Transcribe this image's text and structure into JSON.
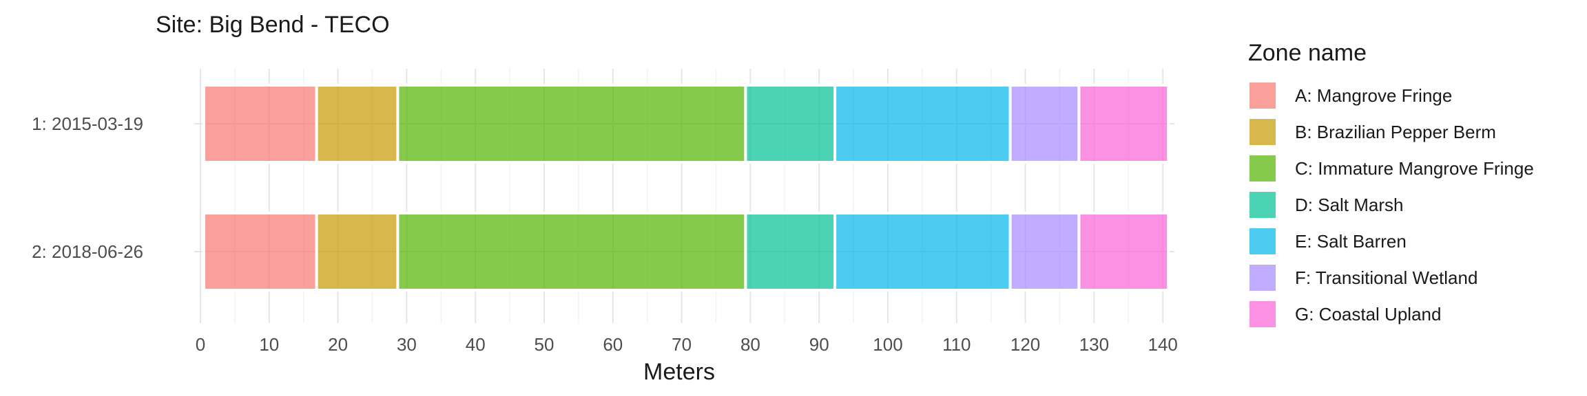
{
  "chart_data": {
    "type": "bar",
    "orientation": "horizontal-stacked",
    "title": "Site: Big Bend - TECO",
    "xlabel": "Meters",
    "ylabel": "",
    "xlim": [
      0,
      141
    ],
    "x_ticks": [
      0,
      10,
      20,
      30,
      40,
      50,
      60,
      70,
      80,
      90,
      100,
      110,
      120,
      130,
      140
    ],
    "categories": [
      "1: 2015-03-19",
      "2: 2018-06-26"
    ],
    "legend_title": "Zone name",
    "legend_position": "right",
    "series": [
      {
        "name": "A: Mangrove Fringe",
        "color": "#F8766D",
        "segments": [
          [
            0.5,
            16.9
          ],
          [
            0.5,
            16.9
          ]
        ]
      },
      {
        "name": "B: Brazilian Pepper Berm",
        "color": "#C49A00",
        "segments": [
          [
            16.9,
            28.7
          ],
          [
            16.9,
            28.7
          ]
        ]
      },
      {
        "name": "C: Immature Mangrove Fringe",
        "color": "#53B400",
        "segments": [
          [
            28.7,
            79.3
          ],
          [
            28.7,
            79.3
          ]
        ]
      },
      {
        "name": "D: Salt Marsh",
        "color": "#00C094",
        "segments": [
          [
            79.3,
            92.3
          ],
          [
            79.3,
            92.3
          ]
        ]
      },
      {
        "name": "E: Salt Barren",
        "color": "#00B6EB",
        "segments": [
          [
            92.3,
            117.8
          ],
          [
            92.3,
            117.8
          ]
        ]
      },
      {
        "name": "F: Transitional Wetland",
        "color": "#A58AFF",
        "segments": [
          [
            117.8,
            127.8
          ],
          [
            117.8,
            127.8
          ]
        ]
      },
      {
        "name": "G: Coastal Upland",
        "color": "#FB61D7",
        "segments": [
          [
            127.8,
            140.8
          ],
          [
            127.8,
            140.8
          ]
        ]
      }
    ]
  }
}
